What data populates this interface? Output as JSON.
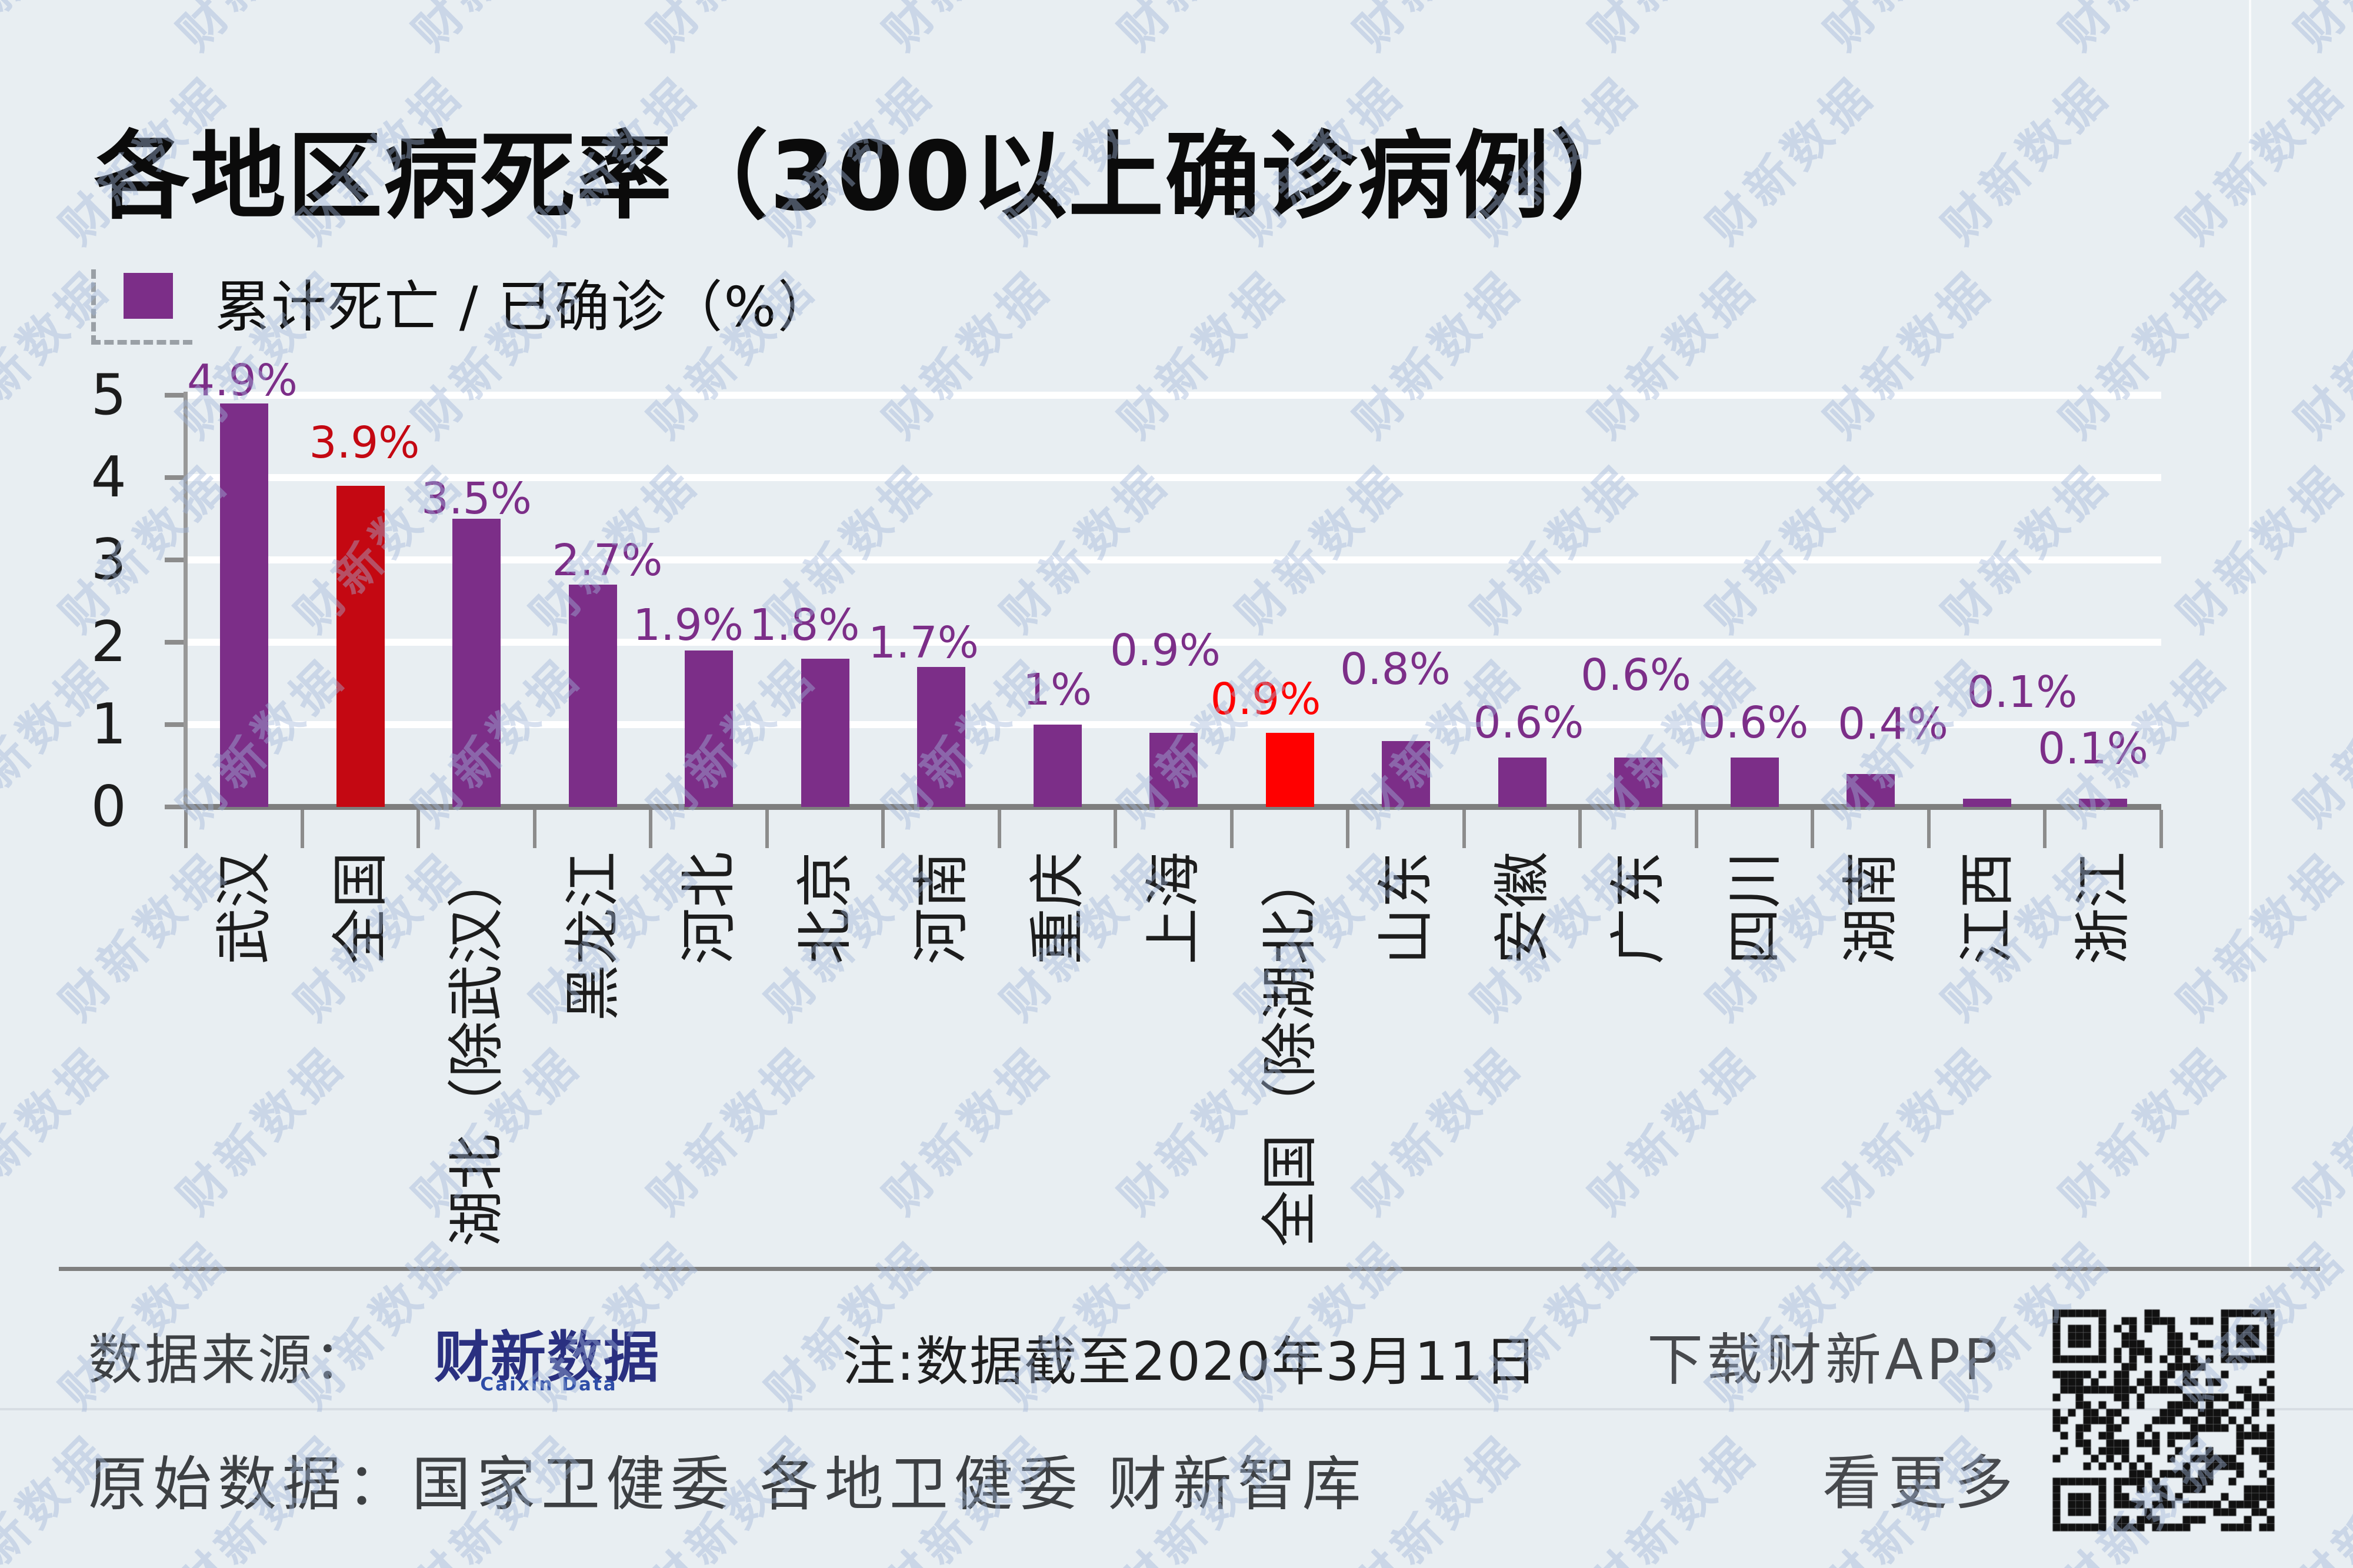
{
  "page": {
    "background_color": "#E8EEF2",
    "watermark_text": "财新数据"
  },
  "title": "各地区病死率（300以上确诊病例）",
  "legend": {
    "label": "累计死亡 / 已确诊（%）",
    "swatch_color": "#7C2E88"
  },
  "chart_data": {
    "type": "bar",
    "title": "各地区病死率（300以上确诊病例）",
    "series": [
      {
        "name": "累计死亡 / 已确诊（%）",
        "values": [
          4.9,
          3.9,
          3.5,
          2.7,
          1.9,
          1.8,
          1.7,
          1.0,
          0.9,
          0.9,
          0.8,
          0.6,
          0.6,
          0.6,
          0.4,
          0.1,
          0.1
        ]
      }
    ],
    "categories": [
      "武汉",
      "全国",
      "湖北（除武汉）",
      "黑龙江",
      "河北",
      "北京",
      "河南",
      "重庆",
      "上海",
      "全国（除湖北）",
      "山东",
      "安徽",
      "广东",
      "四川",
      "湖南",
      "江西",
      "浙江"
    ],
    "value_labels": [
      "4.9%",
      "3.9%",
      "3.5%",
      "2.7%",
      "1.9%",
      "1.8%",
      "1.7%",
      "1%",
      "0.9%",
      "0.9%",
      "0.8%",
      "0.6%",
      "0.6%",
      "0.6%",
      "0.4%",
      "0.1%",
      "0.1%"
    ],
    "xlabel": "",
    "ylabel": "",
    "ylim": [
      0,
      5
    ],
    "yticks": [
      "5",
      "4",
      "3",
      "2",
      "1",
      "0"
    ],
    "grid": true,
    "legend_position": "top-left",
    "colors": {
      "bar_default": "#7C2E88",
      "highlights": [
        {
          "index": 1,
          "color": "#C40812"
        },
        {
          "index": 9,
          "color": "#FF0000"
        }
      ],
      "gridline": "#FFFFFF",
      "axis": "#7E7E7E"
    }
  },
  "footer": {
    "source_label": "数据来源：",
    "logo_text": "财新数据",
    "logo_subtext": "Caixin Data",
    "logo_color": "#2A3080",
    "logo_subtext_color": "#2E4DA7",
    "note": "注:数据截至2020年3月11日",
    "download_app": "下载财新APP",
    "origin": "原始数据：国家卫健委 各地卫健委 财新智库",
    "see_more": "看更多"
  }
}
